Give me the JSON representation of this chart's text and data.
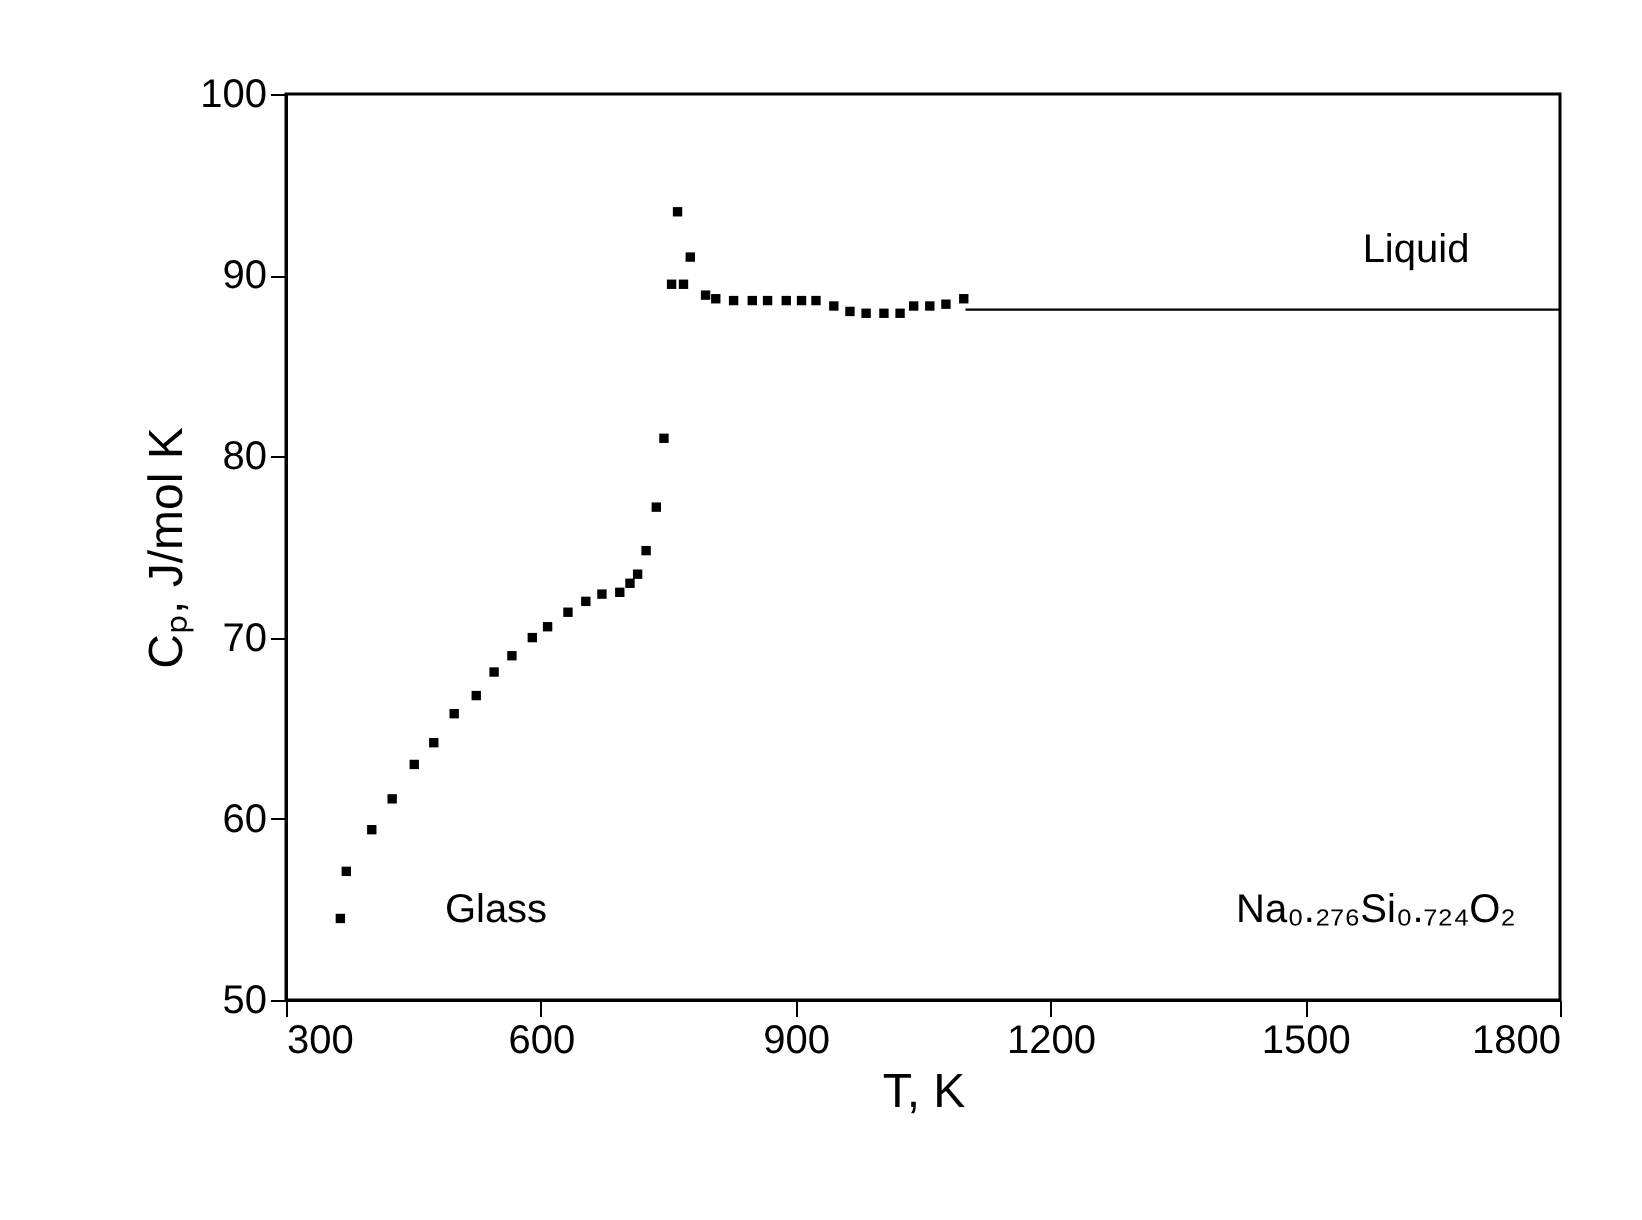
{
  "chart_data": {
    "type": "scatter",
    "xlabel": "T, K",
    "ylabel": "Cₚ, J/mol K",
    "xlim": [
      300,
      1800
    ],
    "xticks": [
      300,
      600,
      900,
      1200,
      1500,
      1800
    ],
    "ylim": [
      50,
      100
    ],
    "yticks": [
      50,
      60,
      70,
      80,
      90,
      100
    ],
    "grid": false,
    "series": [
      {
        "color": "#000000",
        "marker": "square",
        "x": [
          364,
          371,
          401,
          425,
          451,
          474,
          498,
          524,
          545,
          566,
          590,
          608,
          632,
          653,
          672,
          693,
          705,
          714,
          724,
          736,
          745,
          754,
          761,
          768,
          776,
          794,
          806,
          827,
          849,
          867,
          889,
          907,
          924,
          945,
          964,
          983,
          1004,
          1023,
          1039,
          1058,
          1077,
          1098
        ],
        "values": [
          54.5,
          57.1,
          59.4,
          61.1,
          63.0,
          64.2,
          65.8,
          66.8,
          68.1,
          69.0,
          70.0,
          70.6,
          71.4,
          72.0,
          72.4,
          72.5,
          73.0,
          73.5,
          74.8,
          77.2,
          81.0,
          89.5,
          93.5,
          89.5,
          91.0,
          88.9,
          88.7,
          88.6,
          88.6,
          88.6,
          88.6,
          88.6,
          88.6,
          88.3,
          88.0,
          87.9,
          87.9,
          87.9,
          88.3,
          88.3,
          88.4,
          88.7
        ]
      },
      {
        "type": "line",
        "color": "#000000",
        "line_style": "solid",
        "x": [
          1100,
          1800
        ],
        "values": [
          88.1,
          88.1
        ]
      }
    ],
    "annotations": [
      "Liquid",
      "Glass",
      "Na₀.₂₇₆Si₀.₇₂₄O₂"
    ]
  }
}
